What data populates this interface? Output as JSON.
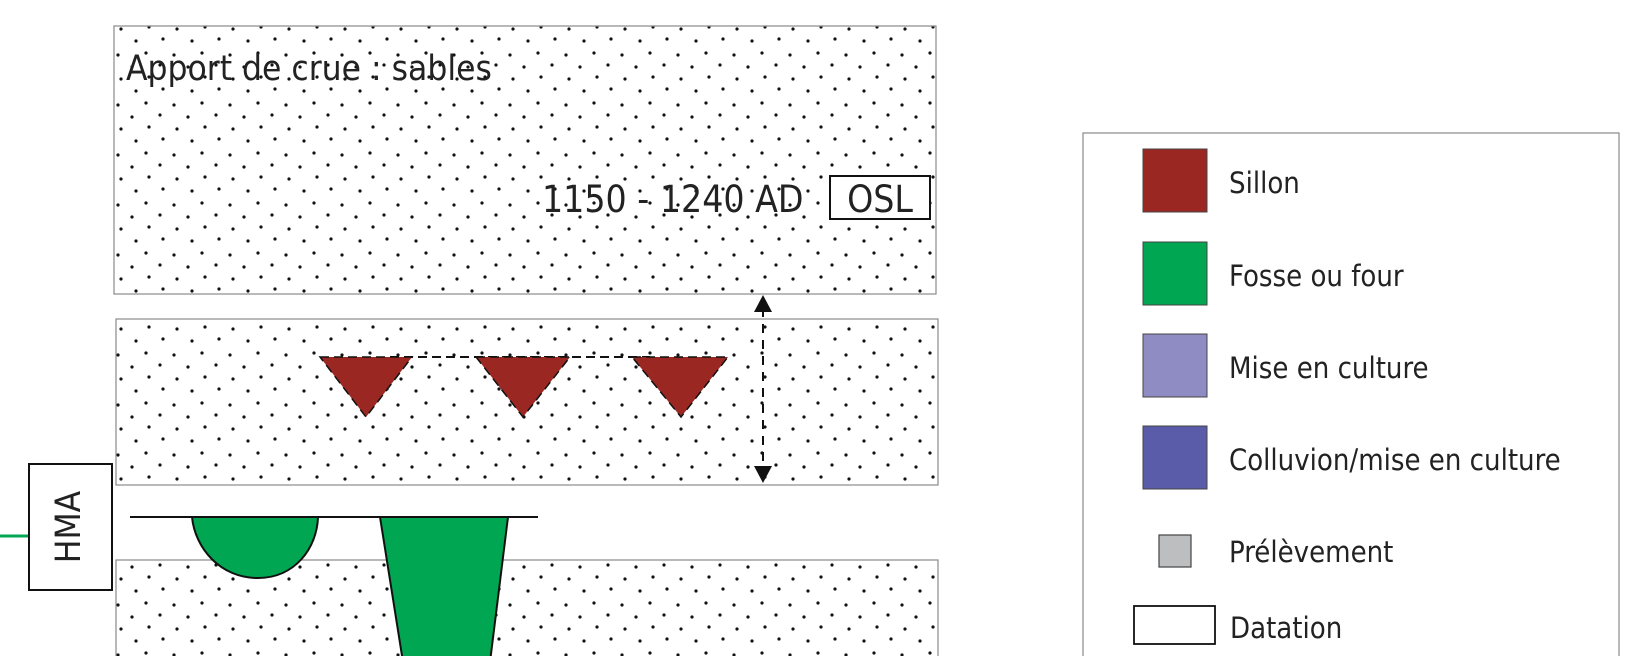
{
  "diagram": {
    "layers": {
      "top_label": "Apport de crue : sables",
      "date_range": "1150 - 1240 AD",
      "date_method": "OSL"
    },
    "period_label": "HMA"
  },
  "legend": {
    "items": [
      {
        "label": "Sillon",
        "color": "#9b2723"
      },
      {
        "label": "Fosse ou four",
        "color": "#00a651"
      },
      {
        "label": "Mise en culture",
        "color": "#8f8cc3"
      },
      {
        "label": "Colluvion/mise en culture",
        "color": "#5a5ba9"
      },
      {
        "label": "Prélèvement",
        "color": "#bcbec0"
      },
      {
        "label": "Datation",
        "color": "#ffffff"
      }
    ]
  }
}
